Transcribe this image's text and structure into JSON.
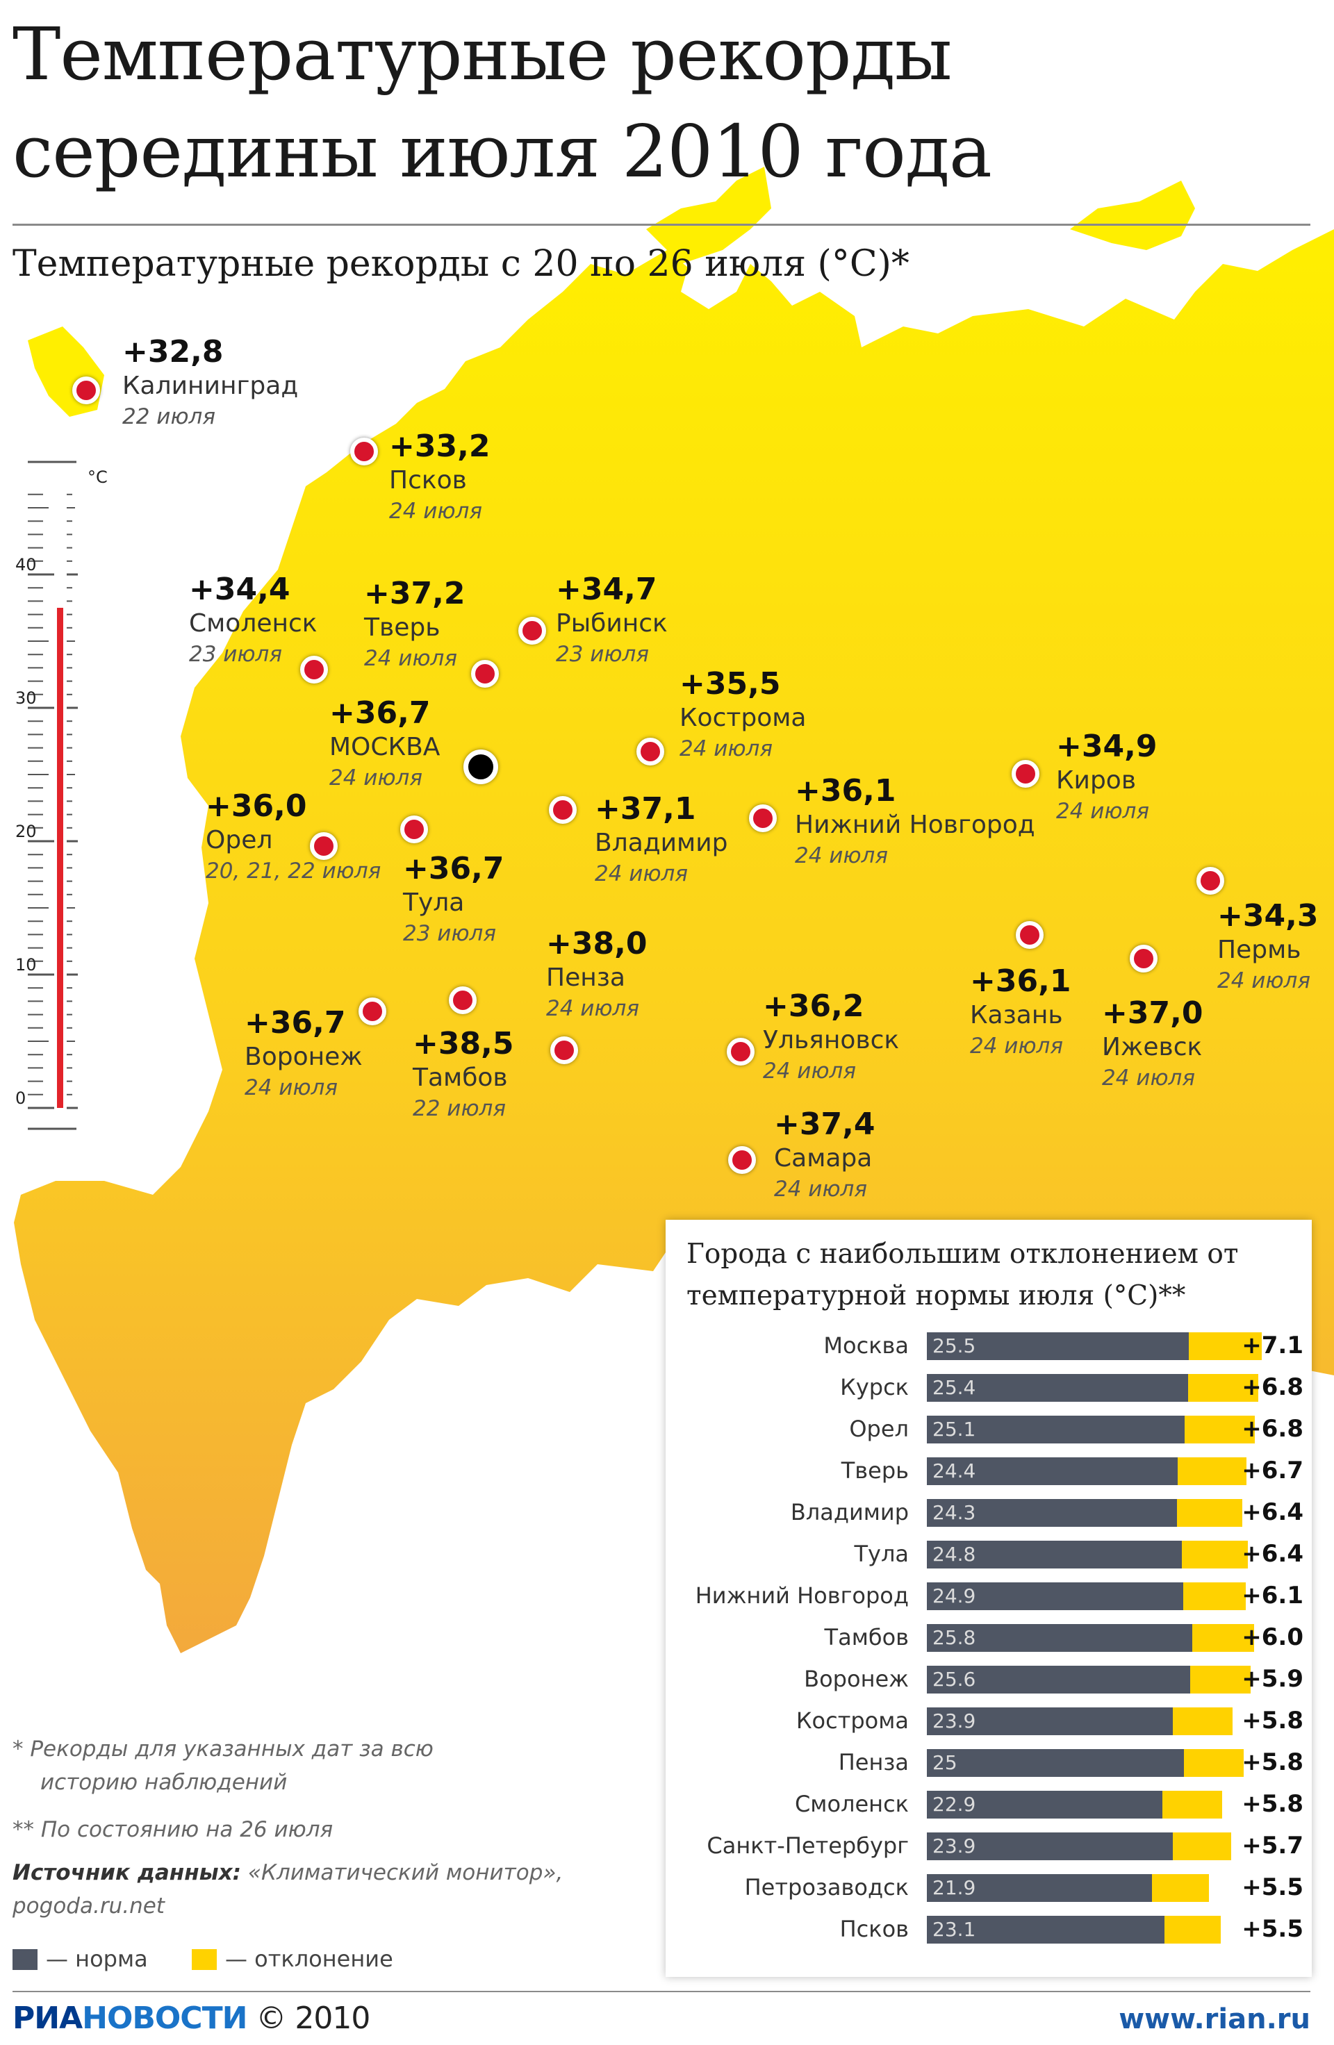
{
  "title_line1": "Температурные рекорды",
  "title_line2": "середины июля 2010 года",
  "subtitle": "Температурные рекорды с 20 по 26 июля (°С)*",
  "thermometer": {
    "unit": "°С",
    "ticks": [
      "0",
      "10",
      "20",
      "30",
      "40"
    ]
  },
  "cities": [
    {
      "value": "+32,8",
      "name": "Калининград",
      "date": "22 июля"
    },
    {
      "value": "+33,2",
      "name": "Псков",
      "date": "24 июля"
    },
    {
      "value": "+34,4",
      "name": "Смоленск",
      "date": "23 июля"
    },
    {
      "value": "+37,2",
      "name": "Тверь",
      "date": "24 июля"
    },
    {
      "value": "+34,7",
      "name": "Рыбинск",
      "date": "23 июля"
    },
    {
      "value": "+36,7",
      "name": "МОСКВА",
      "date": "24 июля"
    },
    {
      "value": "+35,5",
      "name": "Кострома",
      "date": "24 июля"
    },
    {
      "value": "+34,9",
      "name": "Киров",
      "date": "24 июля"
    },
    {
      "value": "+36,0",
      "name": "Орел",
      "date": "20, 21, 22 июля"
    },
    {
      "value": "+37,1",
      "name": "Владимир",
      "date": "24 июля"
    },
    {
      "value": "+36,1",
      "name": "Нижний Новгород",
      "date": "24 июля"
    },
    {
      "value": "+36,7",
      "name": "Тула",
      "date": "23 июля"
    },
    {
      "value": "+38,0",
      "name": "Пенза",
      "date": "24 июля"
    },
    {
      "value": "+34,3",
      "name": "Пермь",
      "date": "24 июля"
    },
    {
      "value": "+36,1",
      "name": "Казань",
      "date": "24 июля"
    },
    {
      "value": "+37,0",
      "name": "Ижевск",
      "date": "24 июля"
    },
    {
      "value": "+36,7",
      "name": "Воронеж",
      "date": "24 июля"
    },
    {
      "value": "+38,5",
      "name": "Тамбов",
      "date": "22 июля"
    },
    {
      "value": "+36,2",
      "name": "Ульяновск",
      "date": "24 июля"
    },
    {
      "value": "+37,4",
      "name": "Самара",
      "date": "24 июля"
    }
  ],
  "panel": {
    "title": "Города с наибольшим отклонением от температурной нормы июля (°С)**"
  },
  "chart_data": {
    "type": "bar",
    "title": "Города с наибольшим отклонением от температурной нормы июля (°С)**",
    "categories": [
      "Москва",
      "Курск",
      "Орел",
      "Тверь",
      "Владимир",
      "Тула",
      "Нижний Новгород",
      "Тамбов",
      "Воронеж",
      "Кострома",
      "Пенза",
      "Смоленск",
      "Санкт-Петербург",
      "Петрозаводск",
      "Псков"
    ],
    "series": [
      {
        "name": "норма",
        "values": [
          25.5,
          25.4,
          25.1,
          24.4,
          24.3,
          24.8,
          24.9,
          25.8,
          25.6,
          23.9,
          25,
          22.9,
          23.9,
          21.9,
          23.1
        ],
        "labels": [
          "25.5",
          "25.4",
          "25.1",
          "24.4",
          "24.3",
          "24.8",
          "24.9",
          "25.8",
          "25.6",
          "23.9",
          "25",
          "22.9",
          "23.9",
          "21.9",
          "23.1"
        ]
      },
      {
        "name": "отклонение",
        "values": [
          7.1,
          6.8,
          6.8,
          6.7,
          6.4,
          6.4,
          6.1,
          6.0,
          5.9,
          5.8,
          5.8,
          5.8,
          5.7,
          5.5,
          5.5
        ],
        "labels": [
          "+7.1",
          "+6.8",
          "+6.8",
          "+6.7",
          "+6.4",
          "+6.4",
          "+6.1",
          "+6.0",
          "+5.9",
          "+5.8",
          "+5.8",
          "+5.8",
          "+5.7",
          "+5.5",
          "+5.5"
        ]
      }
    ],
    "stacked": true,
    "colors": {
      "norm": "#4f5664",
      "deviation": "#ffd200"
    }
  },
  "footnotes": {
    "note1_line1": "* Рекорды для указанных дат за всю",
    "note1_line2": "историю наблюдений",
    "note2": "** По состоянию на 26 июля",
    "source_label": "Источник данных:",
    "source_text": " «Климатический монитор»,",
    "source_line2": "pogoda.ru.net"
  },
  "legend": {
    "norm": "— норма",
    "deviation": "— отклонение"
  },
  "brand": {
    "ria": "РИА",
    "novosti": "НОВОСТИ",
    "copyright": " © 2010"
  },
  "url": "www.rian.ru",
  "colors": {
    "map_top": "#ffef00",
    "map_bottom": "#f5b13a",
    "dot": "#d7142c",
    "capital": "#000000"
  }
}
